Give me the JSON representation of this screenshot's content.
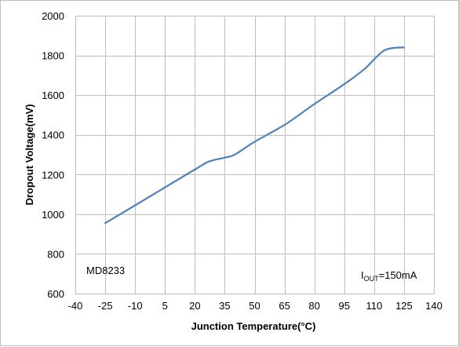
{
  "chart_data": {
    "type": "line",
    "xlabel": "Junction Temperature(°C)",
    "ylabel": "Dropout Voltage(mV)",
    "xlim": [
      -40,
      140
    ],
    "ylim": [
      600,
      2000
    ],
    "x_ticks": [
      -40,
      -25,
      -10,
      5,
      20,
      35,
      50,
      65,
      80,
      95,
      110,
      125,
      140
    ],
    "y_ticks": [
      600,
      800,
      1000,
      1200,
      1400,
      1600,
      1800,
      2000
    ],
    "grid": true,
    "series": [
      {
        "color": "#4f81bd",
        "x": [
          -25,
          -10,
          5,
          20,
          27,
          35,
          40,
          50,
          65,
          80,
          95,
          105,
          110,
          115,
          120,
          125
        ],
        "y": [
          955,
          1045,
          1135,
          1225,
          1265,
          1285,
          1300,
          1365,
          1450,
          1555,
          1655,
          1730,
          1780,
          1825,
          1838,
          1840
        ]
      }
    ],
    "annotations": {
      "device": "MD8233",
      "condition_prefix": "I",
      "condition_sub": "OUT",
      "condition_suffix": "=150mA"
    }
  }
}
